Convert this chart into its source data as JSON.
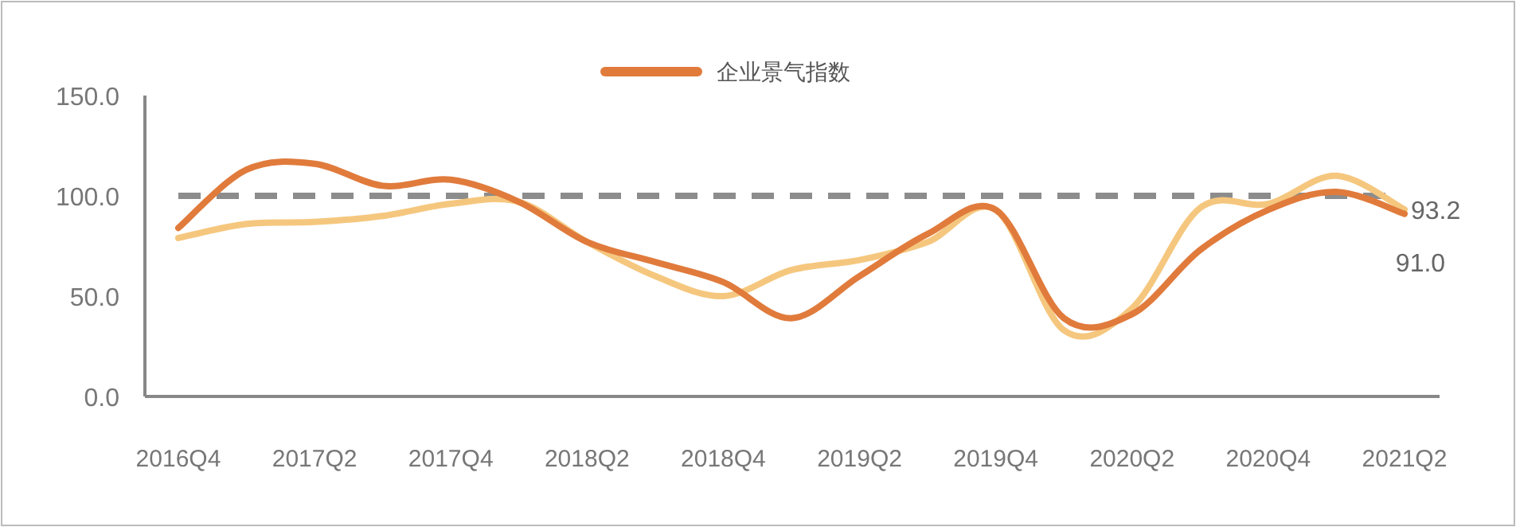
{
  "chart_data": {
    "type": "line",
    "categories": [
      "2016Q4",
      null,
      "2017Q2",
      null,
      "2017Q4",
      null,
      "2018Q2",
      null,
      "2018Q4",
      null,
      "2019Q2",
      null,
      "2019Q4",
      null,
      "2020Q2",
      null,
      "2020Q4",
      null,
      "2021Q2"
    ],
    "ylim": [
      0,
      150
    ],
    "yticks": [
      {
        "value": 0,
        "label": "0.0"
      },
      {
        "value": 50,
        "label": "50.0"
      },
      {
        "value": 100,
        "label": "100.0"
      },
      {
        "value": 150,
        "label": "150.0"
      }
    ],
    "series": [
      {
        "name": "企业景气指数",
        "color": "#e07b3c",
        "values": [
          84,
          113,
          116,
          105,
          108,
          97,
          77,
          67,
          57,
          39,
          60,
          81,
          93,
          39,
          41,
          73,
          93,
          102,
          91.0
        ],
        "value_labels": [
          null,
          null,
          null,
          null,
          null,
          null,
          null,
          null,
          null,
          null,
          null,
          null,
          null,
          null,
          null,
          null,
          null,
          null,
          "91.0"
        ]
      },
      {
        "color": "#f5c77e",
        "values": [
          79,
          86,
          87,
          90,
          96,
          97,
          77,
          60,
          50,
          63,
          68,
          77,
          93,
          33,
          44,
          94,
          96,
          110,
          93.2
        ],
        "value_labels": [
          null,
          null,
          null,
          null,
          null,
          null,
          null,
          null,
          null,
          null,
          null,
          null,
          null,
          null,
          null,
          null,
          null,
          null,
          "93.2"
        ]
      }
    ],
    "ref_lines": [
      {
        "axis": "y",
        "value": 100,
        "color": "#8c8c8c",
        "line_style": "dashed"
      }
    ],
    "legend": "top",
    "line_style": "solid",
    "marker": "none"
  }
}
